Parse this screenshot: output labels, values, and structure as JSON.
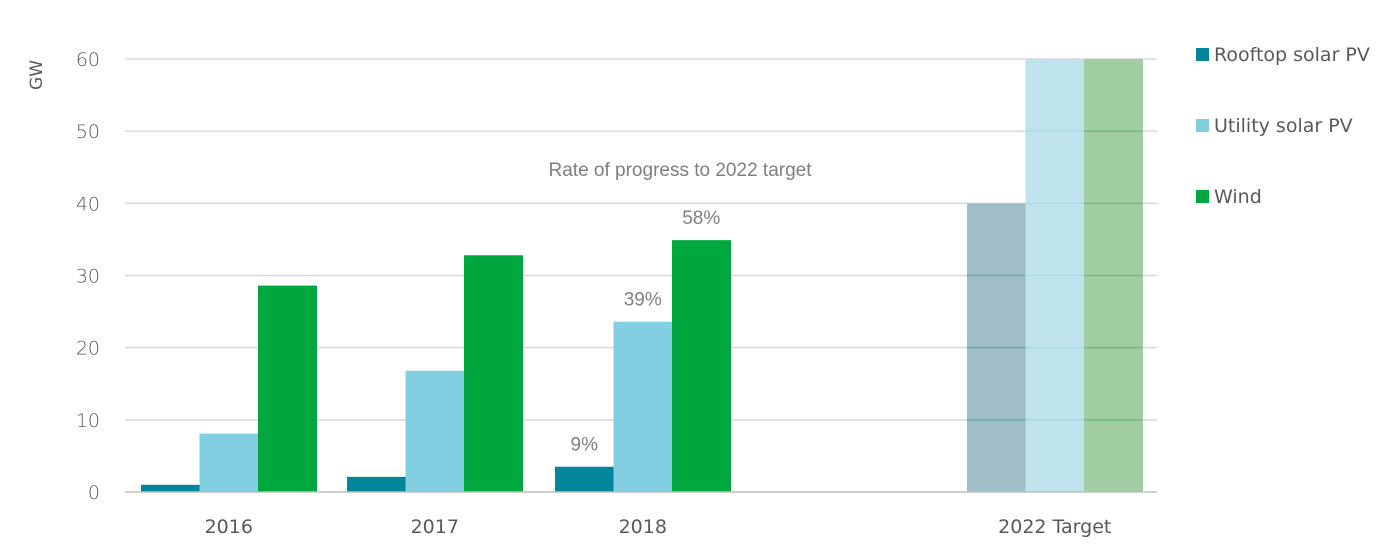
{
  "chart_data": {
    "type": "bar",
    "ylabel": "GW",
    "ylim": [
      0,
      60
    ],
    "yticks": [
      0,
      10,
      20,
      30,
      40,
      50,
      60
    ],
    "grid": true,
    "legend_position": "right",
    "categories": [
      "2016",
      "2017",
      "2018",
      "2022 Target"
    ],
    "series": [
      {
        "name": "Rooftop solar PV",
        "color": "#00859B",
        "target_color": "#A0BEC8",
        "values": [
          1.0,
          2.1,
          3.5,
          40
        ]
      },
      {
        "name": "Utility solar PV",
        "color": "#82CFE1",
        "target_color": "#BEE3EC",
        "values": [
          8.1,
          16.8,
          23.6,
          60
        ]
      },
      {
        "name": "Wind",
        "color": "#00A63E",
        "target_color": "#A0CDA2",
        "values": [
          28.6,
          32.8,
          34.9,
          60
        ]
      }
    ],
    "annotation": "Rate of progress to 2022 target",
    "data_labels": [
      {
        "category": "2018",
        "series": "Rooftop solar PV",
        "text": "9%"
      },
      {
        "category": "2018",
        "series": "Utility solar PV",
        "text": "39%"
      },
      {
        "category": "2018",
        "series": "Wind",
        "text": "58%"
      }
    ]
  }
}
